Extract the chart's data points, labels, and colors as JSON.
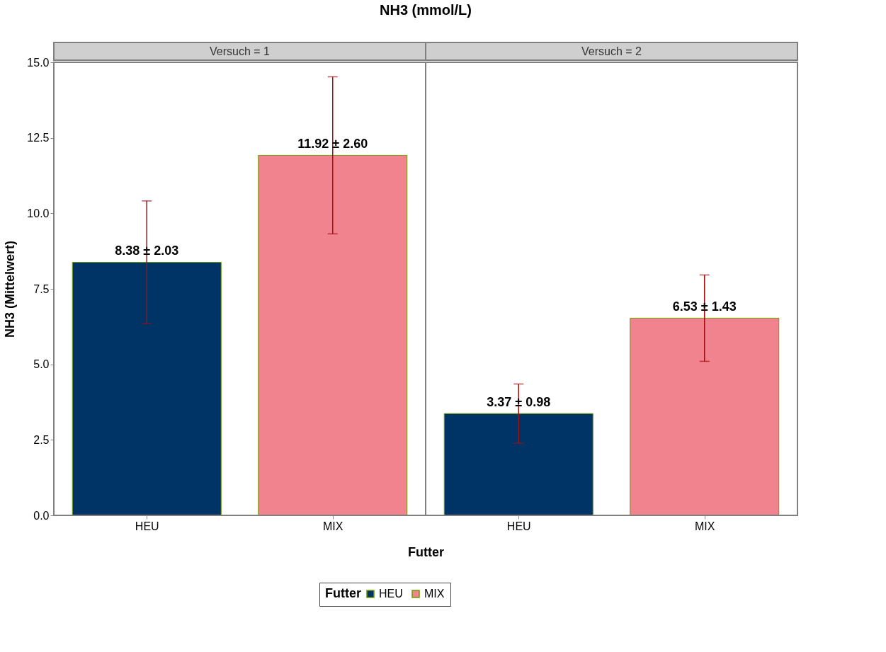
{
  "chart_data": {
    "type": "bar",
    "title": "NH3 (mmol/L)",
    "xlabel": "Futter",
    "ylabel": "NH3 (Mittelwert)",
    "legend_title": "Futter",
    "categories": [
      "HEU",
      "MIX",
      "HEU",
      "MIX"
    ],
    "annotations": [
      "Versuch = 1",
      "Versuch = 2"
    ],
    "series": [
      {
        "name": "HEU",
        "color": "#003366",
        "values": [
          8.38,
          null,
          3.37,
          null
        ],
        "errors": [
          2.03,
          null,
          0.98,
          null
        ],
        "value_labels": [
          "8.38 ± 2.03",
          null,
          "3.37 ± 0.98",
          null
        ]
      },
      {
        "name": "MIX",
        "color": "#f0838e",
        "values": [
          null,
          11.92,
          null,
          6.53
        ],
        "errors": [
          null,
          2.6,
          null,
          1.43
        ],
        "value_labels": [
          null,
          "11.92 ± 2.60",
          null,
          "6.53 ± 1.43"
        ]
      }
    ],
    "ylim": [
      0,
      15
    ],
    "yticks": [
      {
        "value": 0,
        "label": "0.0"
      },
      {
        "value": 2.5,
        "label": "2.5"
      },
      {
        "value": 5,
        "label": "5.0"
      },
      {
        "value": 7.5,
        "label": "7.5"
      },
      {
        "value": 10,
        "label": "10.0"
      },
      {
        "value": 12.5,
        "label": "12.5"
      },
      {
        "value": 15,
        "label": "15.0"
      }
    ],
    "grid": false,
    "legend": "bottom"
  }
}
